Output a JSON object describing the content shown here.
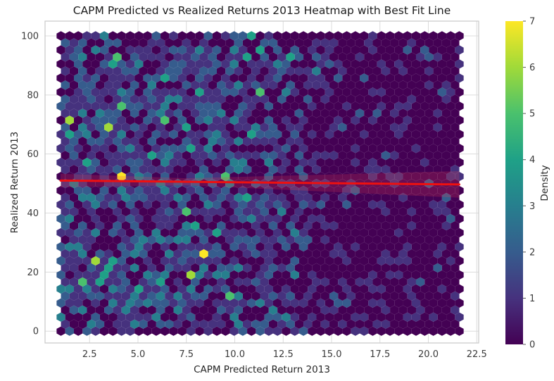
{
  "chart_data": {
    "type": "heatmap",
    "subtype": "hexbin-density-with-regression",
    "title": "CAPM Predicted vs Realized Returns 2013 Heatmap with Best Fit Line",
    "xlabel": "CAPM Predicted Return 2013",
    "ylabel": "Realized Return 2013",
    "xlim": [
      0.2,
      22.6
    ],
    "ylim": [
      -4,
      105
    ],
    "xticks": [
      2.5,
      5.0,
      7.5,
      10.0,
      12.5,
      15.0,
      17.5,
      20.0,
      22.5
    ],
    "xtick_labels": [
      "2.5",
      "5.0",
      "7.5",
      "10.0",
      "12.5",
      "15.0",
      "17.5",
      "20.0",
      "22.5"
    ],
    "yticks": [
      0,
      20,
      40,
      60,
      80,
      100
    ],
    "ytick_labels": [
      "0",
      "20",
      "40",
      "60",
      "80",
      "100"
    ],
    "grid": true,
    "legend": "none",
    "colormap": "viridis",
    "viridis_colors": [
      "#440154",
      "#46327e",
      "#365c8d",
      "#277f8e",
      "#1fa187",
      "#4ac16d",
      "#a0da39",
      "#fde725"
    ],
    "colorbar": {
      "label": "Density",
      "vmin": 0,
      "vmax": 7,
      "ticks": [
        0,
        1,
        2,
        3,
        4,
        5,
        6,
        7
      ],
      "tick_labels": [
        "0",
        "1",
        "2",
        "3",
        "4",
        "5",
        "6",
        "7"
      ],
      "position": "right"
    },
    "hexbin": {
      "x_min": 1.02,
      "x_max": 21.6,
      "y_min": 0,
      "y_max": 100,
      "n_cols": 47,
      "n_rows": 43,
      "density_min": 0,
      "density_max": 7,
      "seed": 20131,
      "lambda_profile": {
        "base": 0.25,
        "amplitude": 1.05,
        "midpoint": 12.9,
        "steepness": 1.1,
        "boundary_factor": 0.5
      },
      "hotspots": [
        {
          "x": 8.5,
          "y": 25,
          "density": 7
        },
        {
          "x": 3.4,
          "y": 68,
          "density": 6
        }
      ]
    },
    "fit_line": {
      "x": [
        1.0,
        21.6
      ],
      "y": [
        51.0,
        49.7
      ],
      "color": "#ee1010",
      "width": 3,
      "ci_band": {
        "x": [
          1.0,
          7.5,
          21.6
        ],
        "half_width": [
          2.3,
          1.2,
          4.5
        ],
        "color": "#e83e52",
        "opacity": 0.22
      }
    },
    "style": {
      "background": "#ffffff",
      "grid_color": "#dcdcdc",
      "spine_color": "#c9c9c9",
      "text_color": "#3a3a3a",
      "tick_fontsize": 13,
      "label_fontsize": 13.5,
      "title_fontsize": 15.5
    }
  }
}
